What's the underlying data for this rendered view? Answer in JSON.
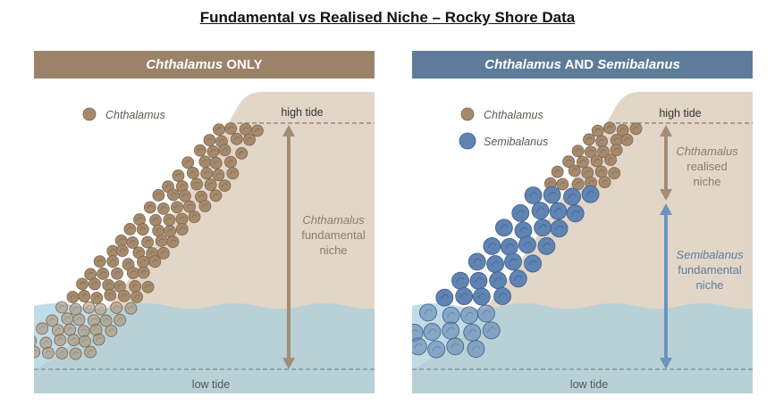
{
  "title": "Fundamental vs Realised Niche – Rocky Shore Data",
  "colors": {
    "chthamalus": "#a68a6c",
    "semibalanus": "#5f84b3",
    "rock": "#e2d6c8",
    "water": "#a7cfdc",
    "arrow_brown": "#a38d76",
    "arrow_blue": "#6d92bf"
  },
  "left_panel": {
    "header_italic": "Chthalamus",
    "header_rest": " ONLY",
    "legend": [
      "Chthalamus"
    ],
    "high_tide": "high tide",
    "low_tide": "low tide",
    "niche_lines": [
      "Chthamalus",
      "fundamental",
      "niche"
    ]
  },
  "right_panel": {
    "header_italic_1": "Chthalamus",
    "header_mid": " AND ",
    "header_italic_2": "Semibalanus",
    "legend": [
      "Chthalamus",
      "Semibalanus"
    ],
    "high_tide": "high tide",
    "low_tide": "low tide",
    "realised_lines": [
      "Chthamalus",
      "realised",
      "niche"
    ],
    "fundamental_lines": [
      "Semibalanus",
      "fundamental",
      "niche"
    ]
  }
}
